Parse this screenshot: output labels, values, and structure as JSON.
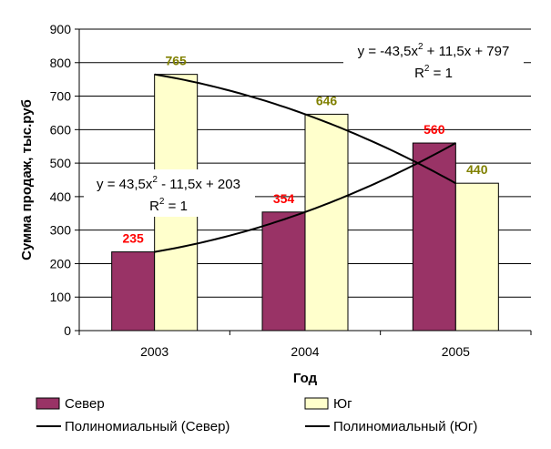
{
  "chart_data": {
    "type": "bar",
    "categories": [
      "2003",
      "2004",
      "2005"
    ],
    "series": [
      {
        "name": "Север",
        "values": [
          235,
          354,
          560
        ],
        "color": "#993366",
        "label_color": "#ff0000"
      },
      {
        "name": "Юг",
        "values": [
          765,
          646,
          440
        ],
        "color": "#ffffcc",
        "label_color": "#808000"
      }
    ],
    "trendlines": [
      {
        "name": "Полиномиальный (Север)",
        "series": "Север",
        "type": "polynomial",
        "color": "#000000",
        "equation": {
          "base": "y = 43,5x",
          "exp": "2",
          "rest": " - 11,5x + 203"
        },
        "r2": {
          "base": "R",
          "exp": "2",
          "rest": " = 1"
        }
      },
      {
        "name": "Полиномиальный (Юг)",
        "series": "Юг",
        "type": "polynomial",
        "color": "#000000",
        "equation": {
          "base": "y = -43,5x",
          "exp": "2",
          "rest": " + 11,5x + 797"
        },
        "r2": {
          "base": "R",
          "exp": "2",
          "rest": " = 1"
        }
      }
    ],
    "xlabel": "Год",
    "ylabel": "Сумма продаж, тыс.руб",
    "ylim": [
      0,
      900
    ],
    "yticks": [
      0,
      100,
      200,
      300,
      400,
      500,
      600,
      700,
      800,
      900
    ],
    "grid": "horizontal",
    "legend_position": "bottom"
  }
}
